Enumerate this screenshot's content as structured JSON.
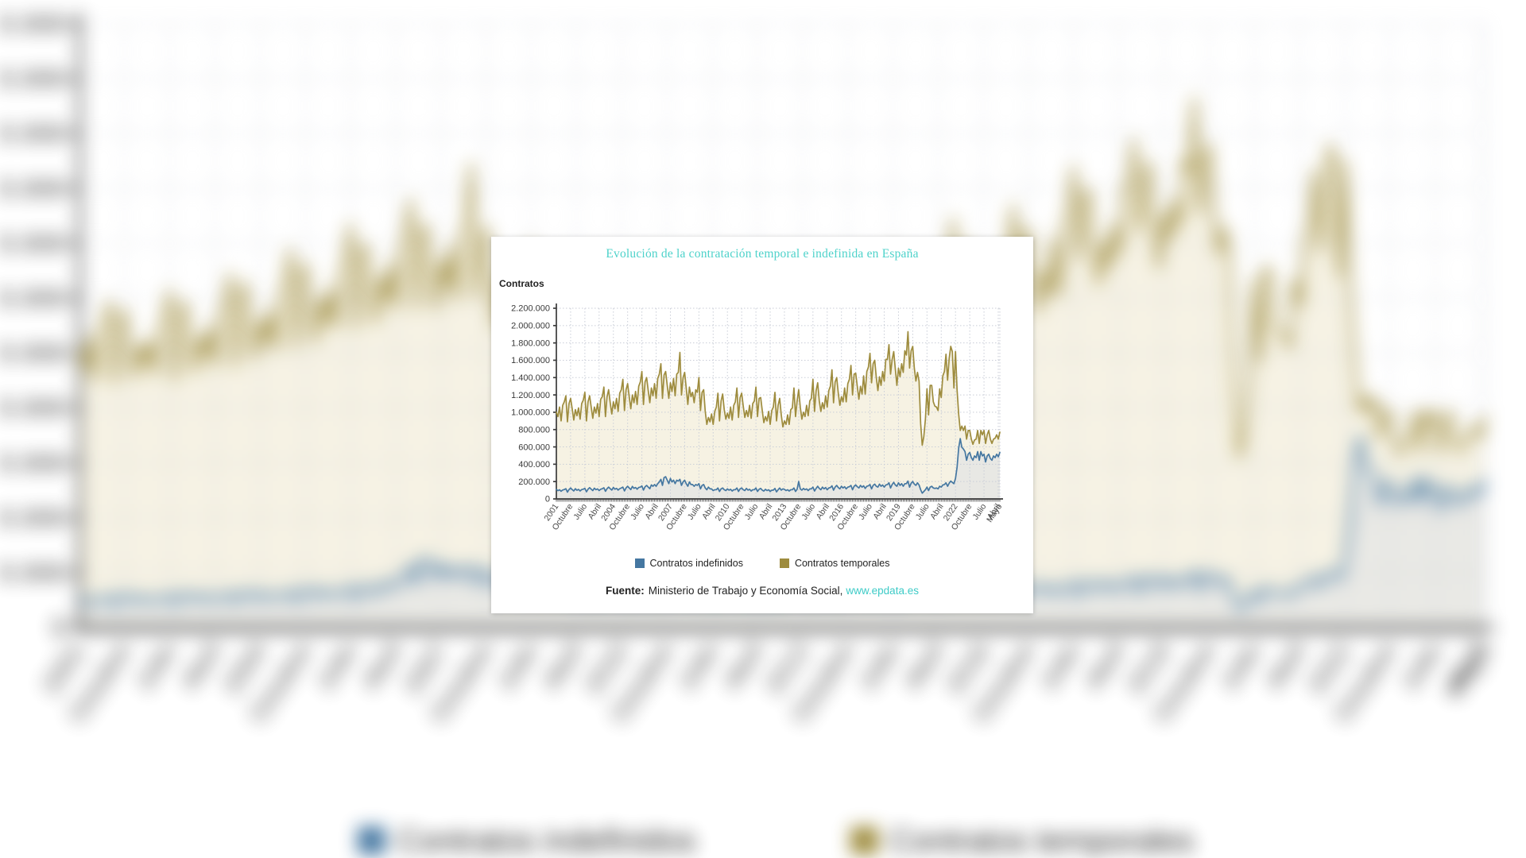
{
  "panel": {
    "title": "Evolución de la contratación temporal e indefinida en España",
    "y_axis_title": "Contratos",
    "legend": [
      {
        "label": "Contratos indefinidos",
        "color": "#4577a1"
      },
      {
        "label": "Contratos temporales",
        "color": "#9e8c3e"
      }
    ],
    "source": {
      "prefix": "Fuente:",
      "text": "Ministerio de Trabajo y Economía Social,",
      "link": "www.epdata.es"
    }
  },
  "colors": {
    "title": "#4dd2ca",
    "link": "#3ecbc7",
    "axis": "#3b3b3b",
    "tick_label": "#4a4a4a",
    "grid": "#c9cdd7",
    "indefinidos_line": "#4577a1",
    "indefinidos_fill": "#e8e8e4",
    "temporales_line": "#9e8c3e",
    "temporales_fill": "#f6f2e3",
    "panel_bg": "#ffffff"
  },
  "chart_data": {
    "type": "line",
    "title": "Evolución de la contratación temporal e indefinida en España",
    "xlabel": "",
    "ylabel": "Contratos",
    "x_range": "monthly, Enero 2001 - Mayo 2024",
    "ylim": [
      0,
      2200000
    ],
    "grid": true,
    "legend_position": "bottom",
    "values_scale": 1000,
    "y_ticks": [
      {
        "v": 0,
        "label": "0"
      },
      {
        "v": 200000,
        "label": "200.000"
      },
      {
        "v": 400000,
        "label": "400.000"
      },
      {
        "v": 600000,
        "label": "600.000"
      },
      {
        "v": 800000,
        "label": "800.000"
      },
      {
        "v": 1000000,
        "label": "1.000.000"
      },
      {
        "v": 1200000,
        "label": "1.200.000"
      },
      {
        "v": 1400000,
        "label": "1.400.000"
      },
      {
        "v": 1600000,
        "label": "1.600.000"
      },
      {
        "v": 1800000,
        "label": "1.800.000"
      },
      {
        "v": 2000000,
        "label": "2.000.000"
      },
      {
        "v": 2200000,
        "label": "2.200.000"
      }
    ],
    "x_ticks": [
      {
        "i": 0,
        "label": "2001"
      },
      {
        "i": 9,
        "label": "Octubre"
      },
      {
        "i": 18,
        "label": "Julio"
      },
      {
        "i": 27,
        "label": "Abril"
      },
      {
        "i": 36,
        "label": "2004"
      },
      {
        "i": 45,
        "label": "Octubre"
      },
      {
        "i": 54,
        "label": "Julio"
      },
      {
        "i": 63,
        "label": "Abril"
      },
      {
        "i": 72,
        "label": "2007"
      },
      {
        "i": 81,
        "label": "Octubre"
      },
      {
        "i": 90,
        "label": "Julio"
      },
      {
        "i": 99,
        "label": "Abril"
      },
      {
        "i": 108,
        "label": "2010"
      },
      {
        "i": 117,
        "label": "Octubre"
      },
      {
        "i": 126,
        "label": "Julio"
      },
      {
        "i": 135,
        "label": "Abril"
      },
      {
        "i": 144,
        "label": "2013"
      },
      {
        "i": 153,
        "label": "Octubre"
      },
      {
        "i": 162,
        "label": "Julio"
      },
      {
        "i": 171,
        "label": "Abril"
      },
      {
        "i": 180,
        "label": "2016"
      },
      {
        "i": 189,
        "label": "Octubre"
      },
      {
        "i": 198,
        "label": "Julio"
      },
      {
        "i": 207,
        "label": "Abril"
      },
      {
        "i": 216,
        "label": "2019"
      },
      {
        "i": 225,
        "label": "Octubre"
      },
      {
        "i": 234,
        "label": "Julio"
      },
      {
        "i": 243,
        "label": "Abril"
      },
      {
        "i": 252,
        "label": "2022"
      },
      {
        "i": 261,
        "label": "Octubre"
      },
      {
        "i": 270,
        "label": "Julio"
      },
      {
        "i": 279,
        "label": "Abril"
      },
      {
        "i": 280,
        "label": "Mayo"
      }
    ],
    "series": [
      {
        "name": "Contratos indefinidos",
        "color": "#4577a1",
        "fill": "#e8e8e4",
        "values_thousands": [
          110,
          95,
          105,
          88,
          103,
          108,
          118,
          78,
          108,
          126,
          108,
          92,
          118,
          100,
          110,
          92,
          108,
          112,
          122,
          82,
          112,
          130,
          112,
          96,
          124,
          106,
          116,
          96,
          112,
          118,
          128,
          88,
          118,
          136,
          118,
          102,
          132,
          112,
          122,
          102,
          118,
          126,
          136,
          92,
          126,
          146,
          126,
          108,
          144,
          122,
          132,
          112,
          132,
          136,
          150,
          102,
          140,
          156,
          136,
          118,
          162,
          146,
          166,
          146,
          176,
          196,
          226,
          156,
          246,
          256,
          216,
          176,
          236,
          196,
          216,
          176,
          216,
          206,
          226,
          156,
          196,
          216,
          176,
          146,
          196,
          166,
          166,
          146,
          166,
          156,
          176,
          116,
          156,
          166,
          126,
          106,
          136,
          116,
          116,
          96,
          106,
          106,
          126,
          86,
          116,
          126,
          106,
          96,
          116,
          101,
          111,
          91,
          106,
          106,
          126,
          86,
          116,
          126,
          106,
          96,
          121,
          101,
          111,
          91,
          106,
          106,
          126,
          86,
          111,
          121,
          101,
          91,
          111,
          96,
          106,
          86,
          101,
          101,
          121,
          81,
          106,
          126,
          101,
          116,
          111,
          96,
          106,
          91,
          106,
          106,
          126,
          86,
          111,
          201,
          116,
          101,
          121,
          106,
          116,
          96,
          116,
          116,
          136,
          91,
          121,
          146,
          121,
          106,
          136,
          116,
          131,
          106,
          126,
          131,
          151,
          101,
          136,
          156,
          131,
          116,
          146,
          126,
          141,
          116,
          136,
          141,
          156,
          106,
          146,
          161,
          141,
          126,
          156,
          136,
          151,
          121,
          146,
          151,
          166,
          116,
          156,
          171,
          146,
          136,
          171,
          146,
          161,
          136,
          161,
          166,
          186,
          126,
          166,
          191,
          161,
          146,
          186,
          156,
          176,
          146,
          176,
          176,
          206,
          136,
          181,
          201,
          171,
          156,
          186,
          161,
          106,
          66,
          86,
          106,
          136,
          96,
          136,
          146,
          126,
          121,
          126,
          116,
          146,
          136,
          161,
          166,
          186,
          146,
          181,
          206,
          191,
          176,
          236,
          366,
          586,
          696,
          596,
          576,
          546,
          446,
          516,
          536,
          476,
          446,
          496,
          476,
          546,
          446,
          546,
          496,
          516,
          426,
          496,
          516,
          466,
          446,
          496,
          476,
          516,
          486,
          536
        ]
      },
      {
        "name": "Contratos temporales",
        "color": "#9e8c3e",
        "fill": "#f6f2e3",
        "values_thousands": [
          1000,
          950,
          1060,
          900,
          1080,
          1120,
          1190,
          890,
          1100,
          1160,
          1040,
          910,
          1030,
          960,
          1050,
          920,
          1100,
          1140,
          1230,
          900,
          1120,
          1190,
          1060,
          930,
          1060,
          990,
          1100,
          950,
          1150,
          1180,
          1290,
          950,
          1180,
          1260,
          1110,
          980,
          1120,
          1040,
          1160,
          1010,
          1220,
          1260,
          1380,
          1020,
          1260,
          1330,
          1180,
          1040,
          1200,
          1110,
          1240,
          1090,
          1300,
          1350,
          1470,
          1090,
          1350,
          1400,
          1250,
          1110,
          1280,
          1190,
          1330,
          1160,
          1390,
          1440,
          1560,
          1160,
          1430,
          1470,
          1310,
          1160,
          1340,
          1240,
          1390,
          1190,
          1440,
          1460,
          1690,
          1200,
          1400,
          1460,
          1280,
          1090,
          1290,
          1180,
          1230,
          1110,
          1260,
          1230,
          1400,
          1020,
          1230,
          1260,
          1010,
          860,
          940,
          890,
          980,
          860,
          1010,
          1060,
          1220,
          900,
          1130,
          1210,
          1030,
          920,
          990,
          930,
          1060,
          910,
          1080,
          1120,
          1280,
          940,
          1170,
          1220,
          1070,
          940,
          1020,
          950,
          1080,
          930,
          1100,
          1130,
          1290,
          950,
          1160,
          1170,
          1020,
          880,
          950,
          900,
          1010,
          860,
          1020,
          1060,
          1230,
          900,
          1080,
          1160,
          970,
          830,
          900,
          860,
          970,
          860,
          1030,
          1050,
          1280,
          950,
          1130,
          1260,
          1060,
          920,
          1000,
          950,
          1080,
          960,
          1130,
          1160,
          1380,
          1010,
          1250,
          1340,
          1130,
          1010,
          1110,
          1040,
          1190,
          1060,
          1250,
          1300,
          1490,
          1110,
          1350,
          1400,
          1220,
          1080,
          1180,
          1120,
          1280,
          1120,
          1330,
          1380,
          1540,
          1200,
          1440,
          1450,
          1300,
          1150,
          1300,
          1210,
          1420,
          1210,
          1470,
          1520,
          1680,
          1340,
          1560,
          1600,
          1400,
          1250,
          1410,
          1310,
          1470,
          1360,
          1610,
          1610,
          1780,
          1440,
          1610,
          1700,
          1500,
          1310,
          1510,
          1410,
          1560,
          1460,
          1710,
          1660,
          1930,
          1510,
          1710,
          1760,
          1510,
          1360,
          1460,
          1360,
          870,
          620,
          720,
          920,
          1270,
          970,
          1310,
          1310,
          1120,
          1070,
          1060,
          1020,
          1270,
          1170,
          1420,
          1470,
          1670,
          1370,
          1620,
          1760,
          1700,
          1280,
          1700,
          1260,
          980,
          790,
          840,
          790,
          840,
          690,
          790,
          790,
          690,
          630,
          680,
          690,
          790,
          640,
          790,
          740,
          790,
          640,
          740,
          790,
          690,
          640,
          690,
          700,
          740,
          690,
          770
        ]
      }
    ]
  }
}
